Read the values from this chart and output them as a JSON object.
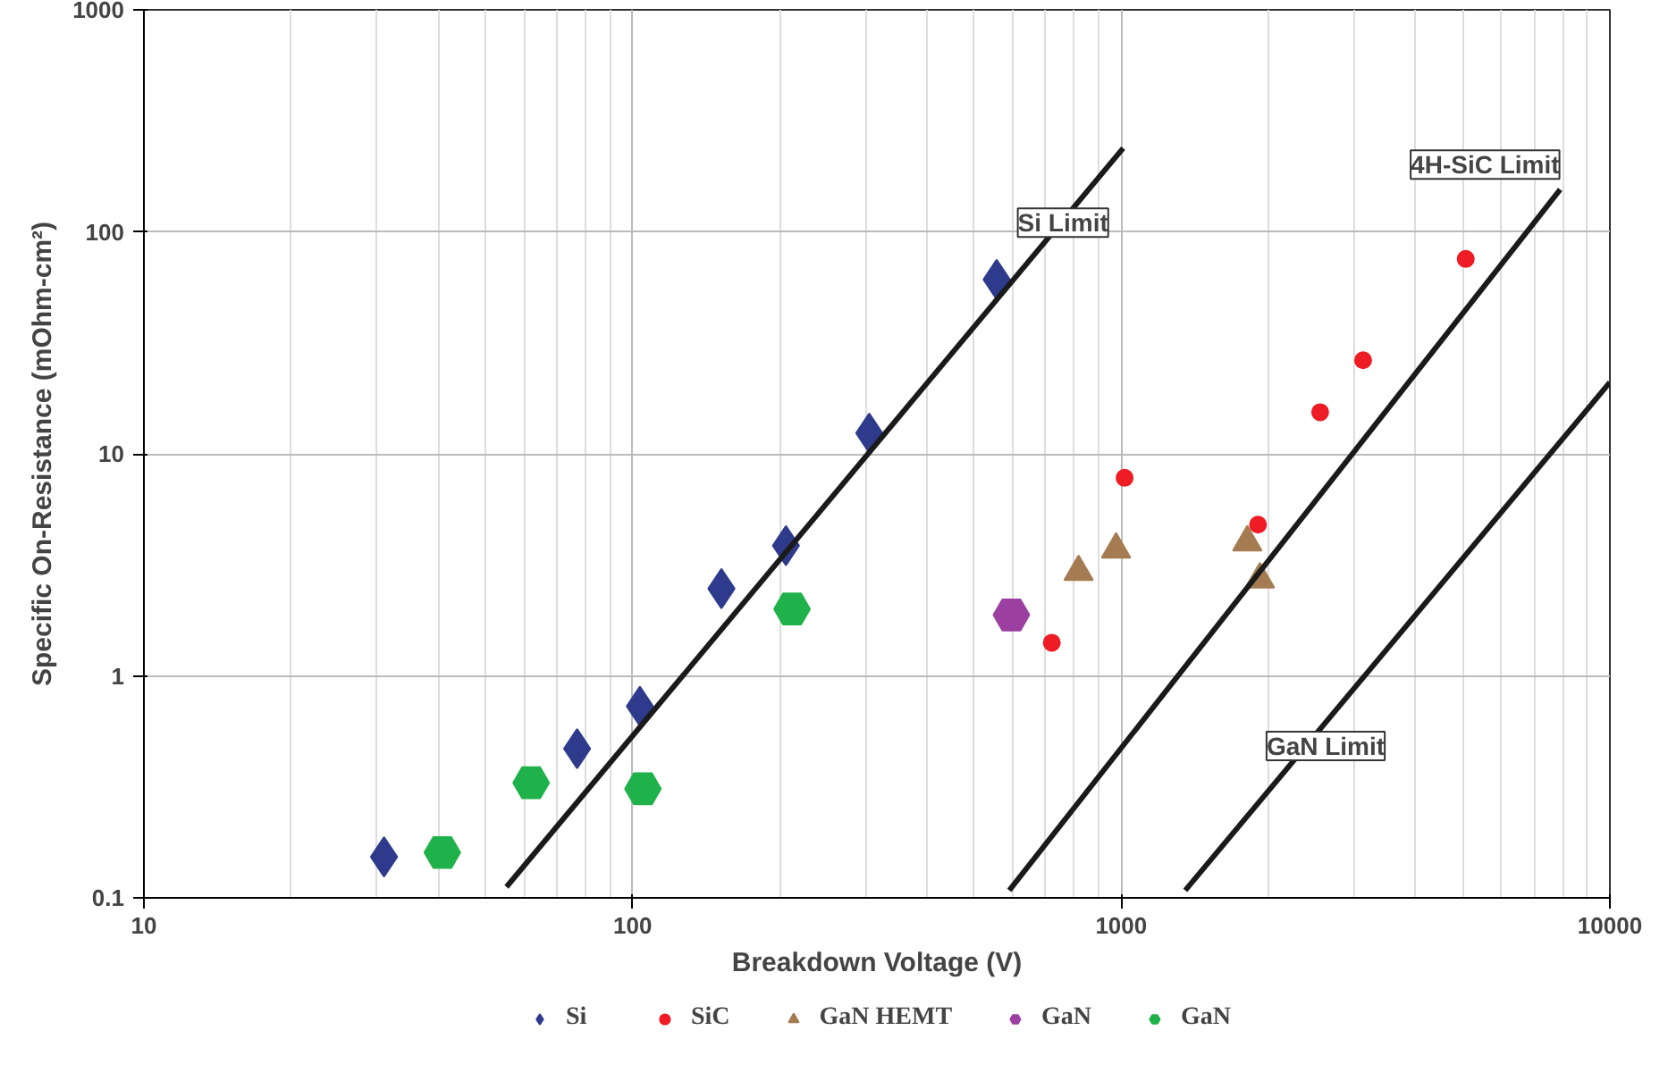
{
  "chart_data": {
    "type": "scatter",
    "xlabel": "Breakdown Voltage (V)",
    "ylabel": "Specific On-Resistance (mOhm-cm²)",
    "log": "xy",
    "grid": true,
    "legend": "bottom",
    "xlim": [
      10,
      10000
    ],
    "xticks": [
      10,
      100,
      1000,
      10000
    ],
    "ylim": [
      0.1,
      1000
    ],
    "yticks": [
      0.1,
      1,
      10,
      100,
      1000
    ],
    "series": [
      {
        "name": "Si",
        "color": "#2e3a8c",
        "marker": "diamond",
        "x": [
          31,
          77,
          103.5,
          152,
          206,
          305,
          556
        ],
        "values": [
          0.153,
          0.47,
          0.73,
          2.47,
          3.86,
          12.4,
          61
        ]
      },
      {
        "name": "SiC",
        "color": "#ee1c25",
        "marker": "circle",
        "x": [
          721,
          1016,
          1905,
          2553,
          3126,
          5070
        ],
        "values": [
          1.41,
          7.8,
          4.8,
          15.4,
          26.4,
          75.5
        ]
      },
      {
        "name": "GaN HEMT",
        "color": "#a57c52",
        "marker": "triangle",
        "x": [
          818,
          976,
          1811,
          1922
        ],
        "values": [
          2.94,
          3.71,
          4.0,
          2.72
        ]
      },
      {
        "name": "GaN",
        "color": "#9b3fa0",
        "x": [
          596
        ],
        "values": [
          1.88
        ]
      },
      {
        "name": "GaN",
        "color": "#20b24a",
        "x": [
          40.8,
          62,
          105,
          212
        ],
        "values": [
          0.16,
          0.33,
          0.31,
          2.0
        ]
      },
      {
        "type": "line",
        "color": "#1a1a1a",
        "x": [
          55.2,
          1009
        ],
        "values": [
          0.112,
          238
        ]
      },
      {
        "type": "line",
        "color": "#1a1a1a",
        "x": [
          590,
          7910
        ],
        "values": [
          0.108,
          155
        ]
      },
      {
        "type": "line",
        "color": "#1a1a1a",
        "x": [
          1352,
          10000
        ],
        "values": [
          0.108,
          21
        ]
      }
    ],
    "annotations": [
      {
        "text": "Si Limit",
        "x": 760,
        "y": 110
      },
      {
        "text": "4H-SiC Limit",
        "x": 7910,
        "y": 155
      },
      {
        "text": "GaN Limit",
        "x": 2620,
        "y": 0.615
      }
    ]
  }
}
